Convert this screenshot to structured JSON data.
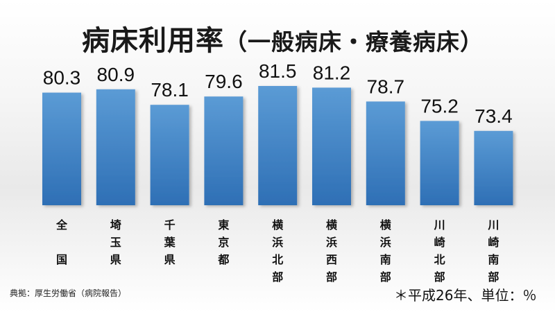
{
  "title": {
    "main": "病床利用率",
    "sub": "（一般病床・療養病床）"
  },
  "source": "典拠：厚生労働省（病院報告）",
  "unit_note": "＊平成26年、単位：％",
  "colors": {
    "bar_top": "#5b9bd5",
    "bar_bottom": "#2e6fb5",
    "text": "#111111"
  },
  "chart_data": {
    "type": "bar",
    "title": "病床利用率（一般病床・療養病床）",
    "categories": [
      "全国",
      "埼玉県",
      "千葉県",
      "東京都",
      "横浜北部",
      "横浜西部",
      "横浜南部",
      "川崎北部",
      "川崎南部"
    ],
    "category_lines": [
      [
        "全",
        "",
        "国"
      ],
      [
        "埼",
        "玉",
        "県"
      ],
      [
        "千",
        "葉",
        "県"
      ],
      [
        "東",
        "京",
        "都"
      ],
      [
        "横",
        "浜",
        "北",
        "部"
      ],
      [
        "横",
        "浜",
        "西",
        "部"
      ],
      [
        "横",
        "浜",
        "南",
        "部"
      ],
      [
        "川",
        "崎",
        "北",
        "部"
      ],
      [
        "川",
        "崎",
        "南",
        "部"
      ]
    ],
    "values": [
      80.3,
      80.9,
      78.1,
      79.6,
      81.5,
      81.2,
      78.7,
      75.2,
      73.4
    ],
    "value_labels": [
      "80.3",
      "80.9",
      "78.1",
      "79.6",
      "81.5",
      "81.2",
      "78.7",
      "75.2",
      "73.4"
    ],
    "xlabel": "",
    "ylabel": "",
    "ylim": [
      60,
      82
    ],
    "grid": false,
    "legend": "none"
  }
}
